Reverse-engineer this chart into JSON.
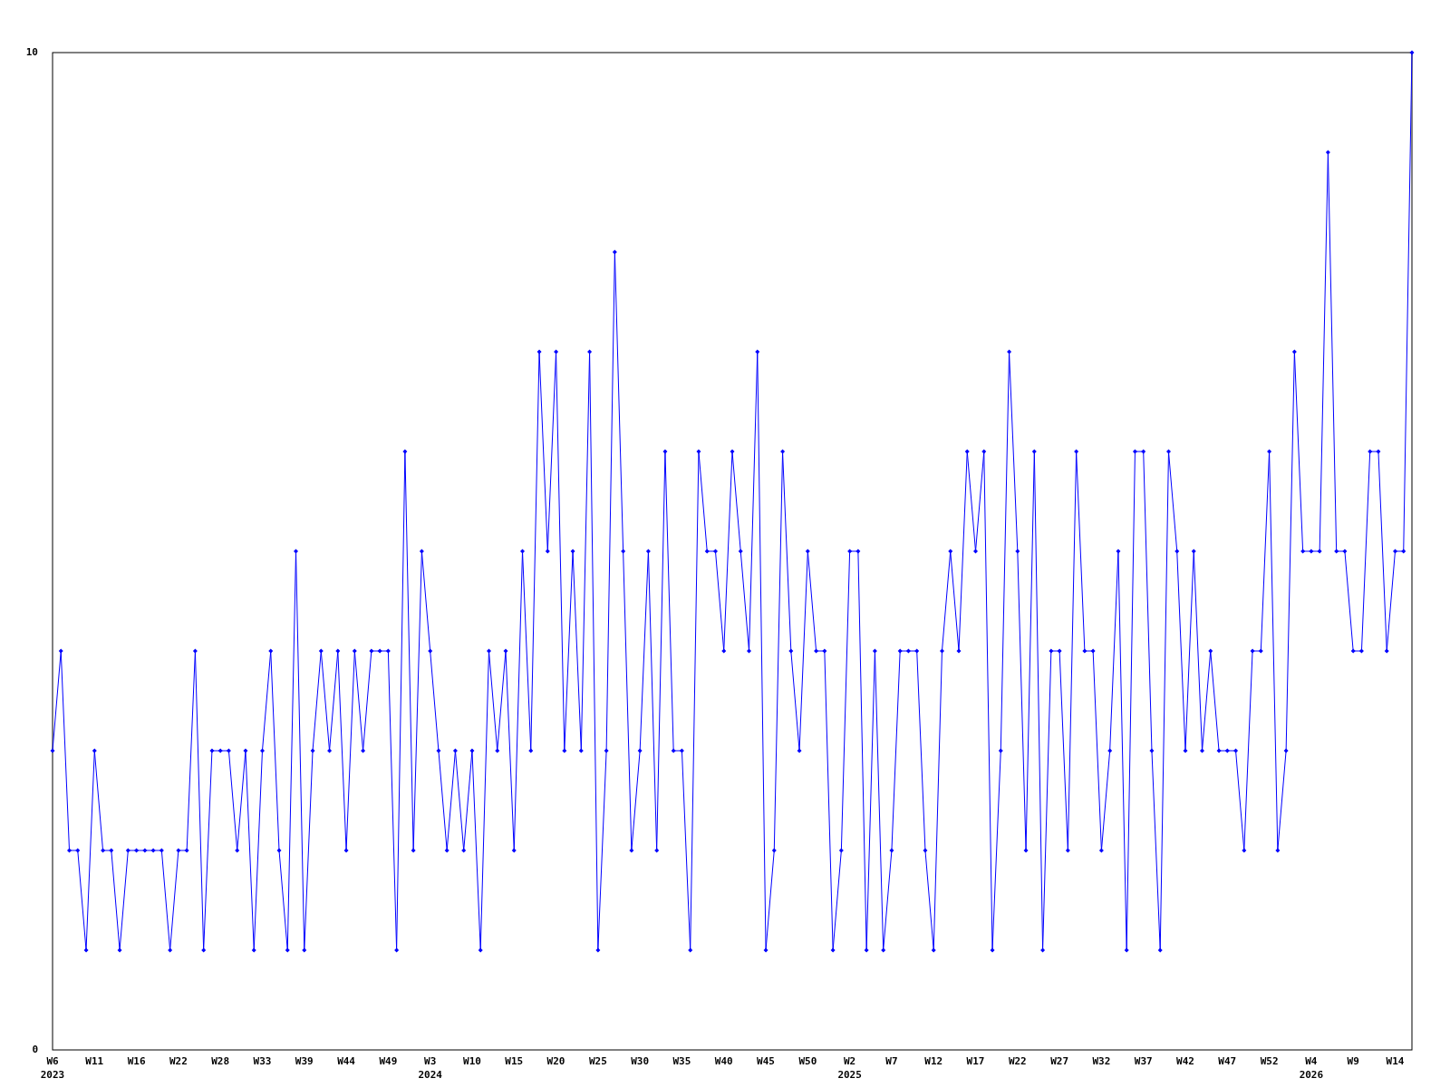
{
  "chart_data": {
    "type": "line",
    "categories": [
      "W6\n2023",
      null,
      null,
      null,
      null,
      "W11",
      null,
      null,
      null,
      null,
      "W16",
      null,
      null,
      null,
      null,
      "W22",
      null,
      null,
      null,
      null,
      "W28",
      null,
      null,
      null,
      null,
      "W33",
      null,
      null,
      null,
      null,
      "W39",
      null,
      null,
      null,
      null,
      "W44",
      null,
      null,
      null,
      null,
      "W49",
      null,
      null,
      null,
      null,
      "W3\n2024",
      null,
      null,
      null,
      null,
      "W10",
      null,
      null,
      null,
      null,
      "W15",
      null,
      null,
      null,
      null,
      "W20",
      null,
      null,
      null,
      null,
      "W25",
      null,
      null,
      null,
      null,
      "W30",
      null,
      null,
      null,
      null,
      "W35",
      null,
      null,
      null,
      null,
      "W40",
      null,
      null,
      null,
      null,
      "W45",
      null,
      null,
      null,
      null,
      "W50",
      null,
      null,
      null,
      null,
      "W2\n2025",
      null,
      null,
      null,
      null,
      "W7",
      null,
      null,
      null,
      null,
      "W12",
      null,
      null,
      null,
      null,
      "W17",
      null,
      null,
      null,
      null,
      "W22",
      null,
      null,
      null,
      null,
      "W27",
      null,
      null,
      null,
      null,
      "W32",
      null,
      null,
      null,
      null,
      "W37",
      null,
      null,
      null,
      null,
      "W42",
      null,
      null,
      null,
      null,
      "W47",
      null,
      null,
      null,
      null,
      "W52",
      null,
      null,
      null,
      null,
      "W4\n2026",
      null,
      null,
      null,
      null,
      "W9",
      null,
      null,
      null,
      null,
      "W14",
      null,
      null
    ],
    "series": [
      {
        "color": "#0000ff",
        "values": [
          3,
          4,
          2,
          2,
          1,
          3,
          2,
          2,
          1,
          2,
          2,
          2,
          2,
          2,
          1,
          2,
          2,
          4,
          1,
          3,
          3,
          3,
          2,
          3,
          1,
          3,
          4,
          2,
          1,
          5,
          1,
          3,
          4,
          3,
          4,
          2,
          4,
          3,
          4,
          4,
          4,
          1,
          6,
          2,
          5,
          4,
          3,
          2,
          3,
          2,
          3,
          1,
          4,
          3,
          4,
          2,
          5,
          3,
          7,
          5,
          7,
          3,
          5,
          3,
          7,
          1,
          3,
          8,
          5,
          2,
          3,
          5,
          2,
          6,
          3,
          3,
          1,
          6,
          5,
          5,
          4,
          6,
          5,
          4,
          7,
          1,
          2,
          6,
          4,
          3,
          5,
          4,
          4,
          1,
          2,
          5,
          5,
          1,
          4,
          1,
          2,
          4,
          4,
          4,
          2,
          1,
          4,
          5,
          4,
          6,
          5,
          6,
          1,
          3,
          7,
          5,
          2,
          6,
          1,
          4,
          4,
          2,
          6,
          4,
          4,
          2,
          3,
          5,
          1,
          6,
          6,
          3,
          1,
          6,
          5,
          3,
          5,
          3,
          4,
          3,
          3,
          3,
          2,
          4,
          4,
          6,
          2,
          3,
          7,
          5,
          5,
          5,
          9,
          5,
          5,
          4,
          4,
          6,
          6,
          4,
          5,
          5,
          10
        ]
      }
    ],
    "ylim": [
      0,
      10
    ],
    "yticks": [
      0,
      10
    ],
    "grid": false,
    "marker": "diamond",
    "line_style": "solid"
  }
}
